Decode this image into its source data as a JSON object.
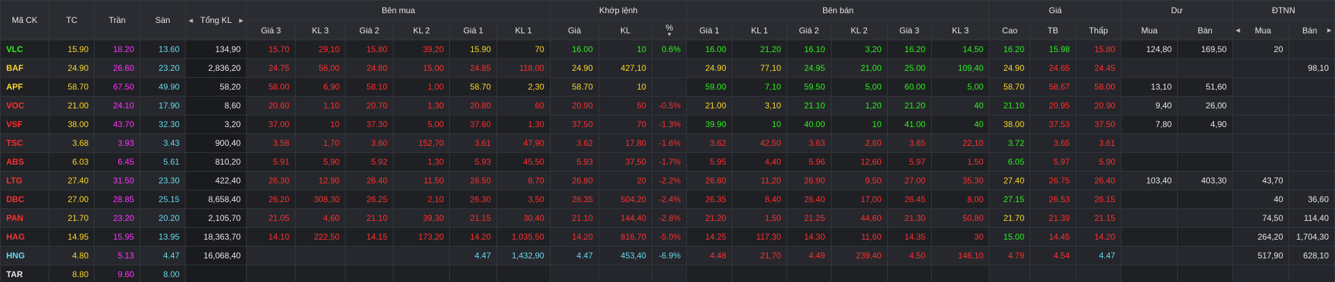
{
  "header": {
    "symbol": "Mã CK",
    "ref": "TC",
    "ceiling": "Trần",
    "floor": "Sàn",
    "total_volume": "Tổng KL",
    "buy_group": "Bên mua",
    "match_group": "Khớp lệnh",
    "sell_group": "Bên bán",
    "price_group": "Giá",
    "remain_group": "Dư",
    "foreign_group": "ĐTNN",
    "buy_cols": [
      "Giá 3",
      "KL 3",
      "Giá 2",
      "KL 2",
      "Giá 1",
      "KL 1"
    ],
    "match_cols": [
      "Giá",
      "KL",
      "%"
    ],
    "sell_cols": [
      "Giá 1",
      "KL 1",
      "Giá 2",
      "KL 2",
      "Giá 3",
      "KL 3"
    ],
    "price_cols": [
      "Cao",
      "TB",
      "Thấp"
    ],
    "remain_cols": [
      "Mua",
      "Bán"
    ],
    "foreign_cols": [
      "Mua",
      "Bán"
    ]
  },
  "colors": {
    "up": "#2cf21b",
    "down": "#ff2f2f",
    "ref": "#fcd72b",
    "ceiling": "#ff35ff",
    "floor": "#66d9ef",
    "neutral": "#e6e6e6"
  },
  "rows": [
    {
      "sym": "VLC",
      "s": "up",
      "tc": "15.90",
      "tran": "18.20",
      "san": "13.60",
      "tkl": "134,90",
      "b3": "15.70",
      "b3s": "down",
      "bk3": "29,10",
      "b2": "15.80",
      "b2s": "down",
      "bk2": "39,20",
      "b1": "15.90",
      "b1s": "ref",
      "bk1": "70",
      "m": "16.00",
      "ms": "up",
      "mk": "10",
      "mp": "0.6%",
      "s1": "16.00",
      "s1s": "up",
      "sk1": "21,20",
      "s2": "16.10",
      "s2s": "up",
      "sk2": "3,20",
      "s3": "16.20",
      "s3s": "up",
      "sk3": "14,50",
      "hi": "16.20",
      "his": "up",
      "avg": "15.98",
      "avgs": "up",
      "lo": "15.80",
      "los": "down",
      "dm": "124,80",
      "db": "169,50",
      "fm": "20",
      "fb": ""
    },
    {
      "sym": "BAF",
      "s": "ref",
      "tc": "24.90",
      "tran": "26.60",
      "san": "23.20",
      "tkl": "2,836,20",
      "b3": "24.75",
      "b3s": "down",
      "bk3": "56,00",
      "b2": "24.80",
      "b2s": "down",
      "bk2": "15,00",
      "b1": "24.85",
      "b1s": "down",
      "bk1": "118,00",
      "m": "24.90",
      "ms": "ref",
      "mk": "427,10",
      "mp": "",
      "s1": "24.90",
      "s1s": "ref",
      "sk1": "77,10",
      "s2": "24.95",
      "s2s": "up",
      "sk2": "21,00",
      "s3": "25.00",
      "s3s": "up",
      "sk3": "109,40",
      "hi": "24.90",
      "his": "ref",
      "avg": "24.65",
      "avgs": "down",
      "lo": "24.45",
      "los": "down",
      "dm": "",
      "db": "",
      "fm": "",
      "fb": "98,10"
    },
    {
      "sym": "APF",
      "s": "ref",
      "tc": "58.70",
      "tran": "67.50",
      "san": "49.90",
      "tkl": "58,20",
      "b3": "58.00",
      "b3s": "down",
      "bk3": "6,90",
      "b2": "58.10",
      "b2s": "down",
      "bk2": "1,00",
      "b1": "58.70",
      "b1s": "ref",
      "bk1": "2,30",
      "m": "58.70",
      "ms": "ref",
      "mk": "10",
      "mp": "",
      "s1": "59.00",
      "s1s": "up",
      "sk1": "7,10",
      "s2": "59.50",
      "s2s": "up",
      "sk2": "5,00",
      "s3": "60.00",
      "s3s": "up",
      "sk3": "5,00",
      "hi": "58.70",
      "his": "ref",
      "avg": "58.67",
      "avgs": "down",
      "lo": "58.00",
      "los": "down",
      "dm": "13,10",
      "db": "51,60",
      "fm": "",
      "fb": ""
    },
    {
      "sym": "VOC",
      "s": "down",
      "tc": "21.00",
      "tran": "24.10",
      "san": "17.90",
      "tkl": "8,60",
      "b3": "20.60",
      "b3s": "down",
      "bk3": "1,10",
      "b2": "20.70",
      "b2s": "down",
      "bk2": "1,30",
      "b1": "20.80",
      "b1s": "down",
      "bk1": "60",
      "m": "20.90",
      "ms": "down",
      "mk": "50",
      "mp": "-0.5%",
      "s1": "21.00",
      "s1s": "ref",
      "sk1": "3,10",
      "s2": "21.10",
      "s2s": "up",
      "sk2": "1,20",
      "s3": "21.20",
      "s3s": "up",
      "sk3": "40",
      "hi": "21.10",
      "his": "up",
      "avg": "20.95",
      "avgs": "down",
      "lo": "20.90",
      "los": "down",
      "dm": "9,40",
      "db": "26,00",
      "fm": "",
      "fb": ""
    },
    {
      "sym": "VSF",
      "s": "down",
      "tc": "38.00",
      "tran": "43.70",
      "san": "32.30",
      "tkl": "3,20",
      "b3": "37.00",
      "b3s": "down",
      "bk3": "10",
      "b2": "37.30",
      "b2s": "down",
      "bk2": "5,00",
      "b1": "37.60",
      "b1s": "down",
      "bk1": "1,30",
      "m": "37.50",
      "ms": "down",
      "mk": "70",
      "mp": "-1.3%",
      "s1": "39.90",
      "s1s": "up",
      "sk1": "10",
      "s2": "40.00",
      "s2s": "up",
      "sk2": "10",
      "s3": "41.00",
      "s3s": "up",
      "sk3": "40",
      "hi": "38.00",
      "his": "ref",
      "avg": "37.53",
      "avgs": "down",
      "lo": "37.50",
      "los": "down",
      "dm": "7,80",
      "db": "4,90",
      "fm": "",
      "fb": ""
    },
    {
      "sym": "TSC",
      "s": "down",
      "tc": "3.68",
      "tran": "3.93",
      "san": "3.43",
      "tkl": "900,40",
      "b3": "3.58",
      "b3s": "down",
      "bk3": "1,70",
      "b2": "3.60",
      "b2s": "down",
      "bk2": "152,70",
      "b1": "3.61",
      "b1s": "down",
      "bk1": "47,90",
      "m": "3.62",
      "ms": "down",
      "mk": "17,80",
      "mp": "-1.6%",
      "s1": "3.62",
      "s1s": "down",
      "sk1": "42,50",
      "s2": "3.63",
      "s2s": "down",
      "sk2": "2,60",
      "s3": "3.65",
      "s3s": "down",
      "sk3": "22,10",
      "hi": "3.72",
      "his": "up",
      "avg": "3.65",
      "avgs": "down",
      "lo": "3.61",
      "los": "down",
      "dm": "",
      "db": "",
      "fm": "",
      "fb": ""
    },
    {
      "sym": "ABS",
      "s": "down",
      "tc": "6.03",
      "tran": "6.45",
      "san": "5.61",
      "tkl": "810,20",
      "b3": "5.91",
      "b3s": "down",
      "bk3": "5,90",
      "b2": "5.92",
      "b2s": "down",
      "bk2": "1,30",
      "b1": "5.93",
      "b1s": "down",
      "bk1": "45,50",
      "m": "5.93",
      "ms": "down",
      "mk": "37,50",
      "mp": "-1.7%",
      "s1": "5.95",
      "s1s": "down",
      "sk1": "4,40",
      "s2": "5.96",
      "s2s": "down",
      "sk2": "12,60",
      "s3": "5.97",
      "s3s": "down",
      "sk3": "1,50",
      "hi": "6.05",
      "his": "up",
      "avg": "5.97",
      "avgs": "down",
      "lo": "5.90",
      "los": "down",
      "dm": "",
      "db": "",
      "fm": "",
      "fb": ""
    },
    {
      "sym": "LTG",
      "s": "down",
      "tc": "27.40",
      "tran": "31.50",
      "san": "23.30",
      "tkl": "422,40",
      "b3": "26.30",
      "b3s": "down",
      "bk3": "12,90",
      "b2": "26.40",
      "b2s": "down",
      "bk2": "11,50",
      "b1": "26.50",
      "b1s": "down",
      "bk1": "8,70",
      "m": "26.80",
      "ms": "down",
      "mk": "20",
      "mp": "-2.2%",
      "s1": "26.80",
      "s1s": "down",
      "sk1": "11,20",
      "s2": "26.90",
      "s2s": "down",
      "sk2": "9,50",
      "s3": "27.00",
      "s3s": "down",
      "sk3": "35,30",
      "hi": "27.40",
      "his": "ref",
      "avg": "26.75",
      "avgs": "down",
      "lo": "26.40",
      "los": "down",
      "dm": "103,40",
      "db": "403,30",
      "fm": "43,70",
      "fb": ""
    },
    {
      "sym": "DBC",
      "s": "down",
      "tc": "27.00",
      "tran": "28.85",
      "san": "25.15",
      "tkl": "8,658,40",
      "b3": "26.20",
      "b3s": "down",
      "bk3": "308,30",
      "b2": "26.25",
      "b2s": "down",
      "bk2": "2,10",
      "b1": "26.30",
      "b1s": "down",
      "bk1": "3,50",
      "m": "26.35",
      "ms": "down",
      "mk": "504,20",
      "mp": "-2.4%",
      "s1": "26.35",
      "s1s": "down",
      "sk1": "8,40",
      "s2": "26.40",
      "s2s": "down",
      "sk2": "17,00",
      "s3": "26.45",
      "s3s": "down",
      "sk3": "8,00",
      "hi": "27.15",
      "his": "up",
      "avg": "26.53",
      "avgs": "down",
      "lo": "26.15",
      "los": "down",
      "dm": "",
      "db": "",
      "fm": "40",
      "fb": "36,60"
    },
    {
      "sym": "PAN",
      "s": "down",
      "tc": "21.70",
      "tran": "23.20",
      "san": "20.20",
      "tkl": "2,105,70",
      "b3": "21.05",
      "b3s": "down",
      "bk3": "4,60",
      "b2": "21.10",
      "b2s": "down",
      "bk2": "39,30",
      "b1": "21.15",
      "b1s": "down",
      "bk1": "30,40",
      "m": "21.10",
      "ms": "down",
      "mk": "144,40",
      "mp": "-2.8%",
      "s1": "21.20",
      "s1s": "down",
      "sk1": "1,50",
      "s2": "21.25",
      "s2s": "down",
      "sk2": "44,60",
      "s3": "21.30",
      "s3s": "down",
      "sk3": "50,80",
      "hi": "21.70",
      "his": "ref",
      "avg": "21.39",
      "avgs": "down",
      "lo": "21.15",
      "los": "down",
      "dm": "",
      "db": "",
      "fm": "74,50",
      "fb": "114,40"
    },
    {
      "sym": "HAG",
      "s": "down",
      "tc": "14.95",
      "tran": "15.95",
      "san": "13.95",
      "tkl": "18,363,70",
      "b3": "14.10",
      "b3s": "down",
      "bk3": "222,50",
      "b2": "14.15",
      "b2s": "down",
      "bk2": "173,20",
      "b1": "14.20",
      "b1s": "down",
      "bk1": "1,035,50",
      "m": "14.20",
      "ms": "down",
      "mk": "816,70",
      "mp": "-5.0%",
      "s1": "14.25",
      "s1s": "down",
      "sk1": "117,30",
      "s2": "14.30",
      "s2s": "down",
      "sk2": "11,60",
      "s3": "14.35",
      "s3s": "down",
      "sk3": "30",
      "hi": "15.00",
      "his": "up",
      "avg": "14.45",
      "avgs": "down",
      "lo": "14.20",
      "los": "down",
      "dm": "",
      "db": "",
      "fm": "264,20",
      "fb": "1,704,30"
    },
    {
      "sym": "HNG",
      "s": "floor",
      "tc": "4.80",
      "tran": "5.13",
      "san": "4.47",
      "tkl": "16,068,40",
      "b3": "",
      "b3s": "down",
      "bk3": "",
      "b2": "",
      "b2s": "down",
      "bk2": "",
      "b1": "4.47",
      "b1s": "floor",
      "bk1": "1,432,90",
      "m": "4.47",
      "ms": "floor",
      "mk": "453,40",
      "mp": "-6.9%",
      "s1": "4.48",
      "s1s": "down",
      "sk1": "21,70",
      "s2": "4.49",
      "s2s": "down",
      "sk2": "239,40",
      "s3": "4.50",
      "s3s": "down",
      "sk3": "146,10",
      "hi": "4.79",
      "his": "down",
      "avg": "4.54",
      "avgs": "down",
      "lo": "4.47",
      "los": "floor",
      "dm": "",
      "db": "",
      "fm": "517,90",
      "fb": "628,10"
    },
    {
      "sym": "TAR",
      "s": "neutral",
      "tc": "8.80",
      "tran": "9.60",
      "san": "8.00",
      "tkl": "",
      "b3": "",
      "b3s": "down",
      "bk3": "",
      "b2": "",
      "b2s": "down",
      "bk2": "",
      "b1": "",
      "b1s": "down",
      "bk1": "",
      "m": "",
      "ms": "down",
      "mk": "",
      "mp": "",
      "s1": "",
      "s1s": "down",
      "sk1": "",
      "s2": "",
      "s2s": "down",
      "sk2": "",
      "s3": "",
      "s3s": "down",
      "sk3": "",
      "hi": "",
      "his": "down",
      "avg": "",
      "avgs": "down",
      "lo": "",
      "los": "down",
      "dm": "",
      "db": "",
      "fm": "",
      "fb": ""
    }
  ]
}
